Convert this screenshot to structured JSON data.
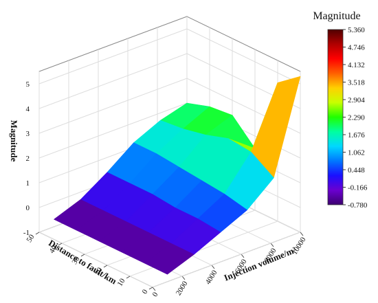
{
  "chart_data": {
    "type": "surface3d",
    "zlabel": "Magnitude",
    "ylabel": "Distance to fault/km",
    "xlabel": "Injection volume/m³",
    "x": [
      1000,
      2800,
      4600,
      6400,
      8200,
      10000
    ],
    "y": [
      0,
      10,
      20,
      30,
      40,
      50
    ],
    "z": [
      [
        -0.7,
        -0.3,
        0.2,
        0.7,
        1.6,
        5.3
      ],
      [
        -0.7,
        -0.3,
        0.3,
        0.9,
        2.2,
        4.6
      ],
      [
        -0.7,
        -0.3,
        0.3,
        1.0,
        2.3,
        1.5
      ],
      [
        -0.7,
        -0.3,
        0.4,
        1.1,
        2.0,
        2.4
      ],
      [
        -0.7,
        -0.3,
        0.4,
        1.2,
        1.8,
        2.3
      ],
      [
        -0.7,
        -0.3,
        0.4,
        1.2,
        1.7,
        2.0
      ]
    ],
    "xlim": [
      0,
      10000
    ],
    "xticks": [
      0,
      2000,
      4000,
      6000,
      8000,
      10000
    ],
    "ylim": [
      0,
      50
    ],
    "yticks": [
      0,
      10,
      20,
      30,
      40,
      50
    ],
    "zlim": [
      -1,
      5.5
    ],
    "zticks": [
      -1,
      0,
      1,
      2,
      3,
      4,
      5
    ],
    "grid": true,
    "colorbar": {
      "title": "Magnitude",
      "ticks": [
        {
          "value": 5.36,
          "label": "5.360"
        },
        4.746,
        4.132,
        3.518,
        2.904,
        {
          "value": 2.29,
          "label": "2.290"
        },
        1.676,
        1.062,
        0.448,
        -0.166,
        {
          "value": -0.78,
          "label": "-0.780"
        }
      ],
      "colors": [
        "#3c0070",
        "#6a00d0",
        "#1a10ff",
        "#0078ff",
        "#00d8ff",
        "#00ffa0",
        "#20ff00",
        "#c8ff00",
        "#ffd000",
        "#ff6000",
        "#ff0000",
        "#b00000",
        "#500000"
      ]
    }
  }
}
